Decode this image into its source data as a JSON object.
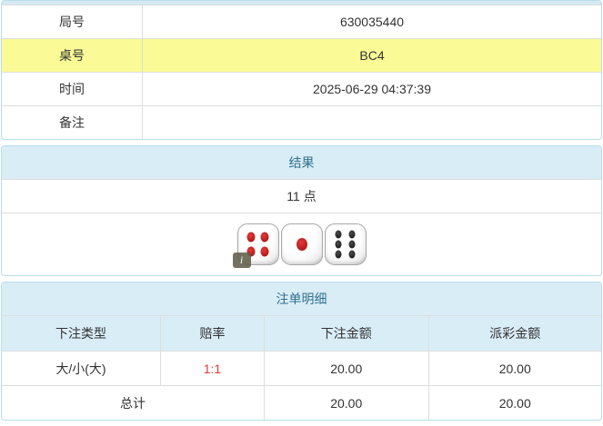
{
  "info_table": {
    "rows": [
      {
        "label": "局号",
        "value": "630035440"
      },
      {
        "label": "桌号",
        "value": "BC4"
      },
      {
        "label": "时间",
        "value": "2025-06-29 04:37:39"
      },
      {
        "label": "备注",
        "value": ""
      }
    ]
  },
  "result_panel": {
    "title": "结果",
    "points": "11 点",
    "dice": [
      4,
      1,
      6
    ],
    "info_icon": "i"
  },
  "bets_panel": {
    "title": "注单明细",
    "columns": [
      "下注类型",
      "赔率",
      "下注金额",
      "派彩金额"
    ],
    "rows": [
      {
        "bet_type": "大/小(大)",
        "odds": "1:1",
        "bet_amount": "20.00",
        "payout": "20.00"
      }
    ],
    "total": {
      "label": "总计",
      "bet_amount": "20.00",
      "payout": "20.00"
    }
  },
  "colors": {
    "panel_border": "#b9dde9",
    "panel_header_bg": "#d9edf7",
    "panel_header_text": "#31708f",
    "highlight_yellow": "#fafa96",
    "odds_red": "#e03a3a",
    "table_border": "#dddddd",
    "red_pip": "#9d0f0f",
    "black_pip": "#101010"
  }
}
